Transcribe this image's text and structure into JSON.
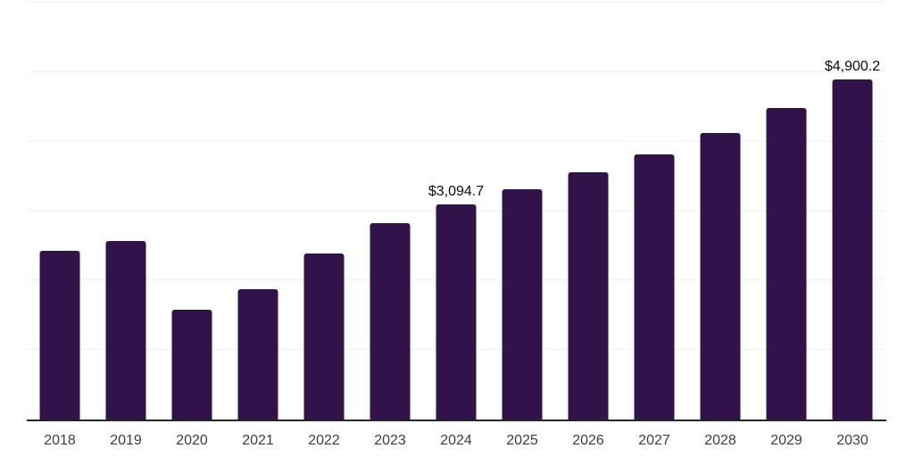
{
  "chart_data": {
    "type": "bar",
    "title": "",
    "xlabel": "",
    "ylabel": "",
    "categories": [
      "2018",
      "2019",
      "2020",
      "2021",
      "2022",
      "2023",
      "2024",
      "2025",
      "2026",
      "2027",
      "2028",
      "2029",
      "2030"
    ],
    "values": [
      2430,
      2570,
      1585,
      1880,
      2390,
      2825,
      3094.7,
      3310,
      3555,
      3810,
      4130,
      4490,
      4900.2
    ],
    "data_labels": [
      "",
      "",
      "",
      "",
      "",
      "",
      "$3,094.7",
      "",
      "",
      "",
      "",
      "",
      "$4,900.2"
    ],
    "ylim": [
      0,
      6000
    ],
    "gridline_step": 1000,
    "grid": "horizontal-only",
    "y_tick_labels_shown": false,
    "legend_position": "none"
  },
  "style": {
    "background": "#ffffff",
    "bar_color": "#321349",
    "axis_line_color": "#27252c",
    "gridline_color": "#f0f0f2",
    "year_label_color": "#3d3d3d",
    "data_label_color": "#0d0d0d"
  }
}
